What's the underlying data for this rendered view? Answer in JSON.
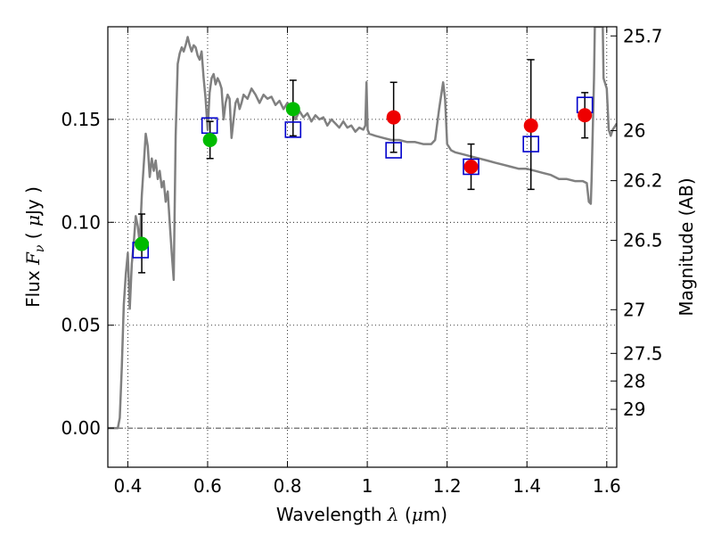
{
  "chart_data": {
    "type": "scatter",
    "xlabel": "Wavelength λ (μm)",
    "ylabel": "Flux F_ν (μJy)",
    "ylabel_right": "Magnitude (AB)",
    "xlim": [
      0.35,
      1.625
    ],
    "ylim": [
      -0.019,
      0.195
    ],
    "grid": true,
    "x_ticks": [
      {
        "value": 0.4,
        "label": "0.4"
      },
      {
        "value": 0.6,
        "label": "0.6"
      },
      {
        "value": 0.8,
        "label": "0.8"
      },
      {
        "value": 1.0,
        "label": "1"
      },
      {
        "value": 1.2,
        "label": "1.2"
      },
      {
        "value": 1.4,
        "label": "1.4"
      },
      {
        "value": 1.6,
        "label": "1.6"
      }
    ],
    "y_ticks": [
      {
        "value": 0.0,
        "label": "0.00"
      },
      {
        "value": 0.05,
        "label": "0.05"
      },
      {
        "value": 0.1,
        "label": "0.10"
      },
      {
        "value": 0.15,
        "label": "0.15"
      }
    ],
    "mag_ticks": [
      {
        "mag": 25.7,
        "label": "25.7"
      },
      {
        "mag": 26.0,
        "label": "26"
      },
      {
        "mag": 26.2,
        "label": "26.2"
      },
      {
        "mag": 26.5,
        "label": "26.5"
      },
      {
        "mag": 27.0,
        "label": "27"
      },
      {
        "mag": 27.5,
        "label": "27.5"
      },
      {
        "mag": 28.0,
        "label": "28"
      },
      {
        "mag": 29.0,
        "label": "29"
      }
    ],
    "colors": {
      "model": "#808080",
      "green": "#00bb00",
      "red": "#ee0000",
      "square": "#0000cc",
      "errorbar": "#000000"
    },
    "series": [
      {
        "marker": "circle",
        "color": "green",
        "points": [
          {
            "x": 0.435,
            "y": 0.0895
          },
          {
            "x": 0.606,
            "y": 0.14
          },
          {
            "x": 0.814,
            "y": 0.155
          }
        ]
      },
      {
        "marker": "circle",
        "color": "red",
        "points": [
          {
            "x": 1.066,
            "y": 0.151
          },
          {
            "x": 1.26,
            "y": 0.127
          },
          {
            "x": 1.41,
            "y": 0.147
          },
          {
            "x": 1.545,
            "y": 0.152
          }
        ]
      },
      {
        "marker": "open-square",
        "color": "square",
        "points": [
          {
            "x": 0.432,
            "y": 0.0865
          },
          {
            "x": 0.605,
            "y": 0.147
          },
          {
            "x": 0.814,
            "y": 0.145
          },
          {
            "x": 1.066,
            "y": 0.135
          },
          {
            "x": 1.26,
            "y": 0.127
          },
          {
            "x": 1.41,
            "y": 0.138
          },
          {
            "x": 1.545,
            "y": 0.157
          }
        ]
      },
      {
        "marker": "errorbar",
        "color": "errorbar",
        "points": [
          {
            "x": 0.435,
            "y": 0.0895,
            "ylow": 0.0755,
            "yhigh": 0.104
          },
          {
            "x": 0.606,
            "y": 0.14,
            "ylow": 0.131,
            "yhigh": 0.149
          },
          {
            "x": 0.814,
            "y": 0.155,
            "ylow": 0.142,
            "yhigh": 0.169
          },
          {
            "x": 1.066,
            "y": 0.151,
            "ylow": 0.134,
            "yhigh": 0.168
          },
          {
            "x": 1.26,
            "y": 0.127,
            "ylow": 0.116,
            "yhigh": 0.138
          },
          {
            "x": 1.41,
            "y": 0.147,
            "ylow": 0.116,
            "yhigh": 0.179
          },
          {
            "x": 1.545,
            "y": 0.152,
            "ylow": 0.141,
            "yhigh": 0.163
          }
        ]
      },
      {
        "marker": "line",
        "color": "model",
        "points": [
          [
            0.35,
            0.0
          ],
          [
            0.375,
            0.0
          ],
          [
            0.38,
            0.005
          ],
          [
            0.385,
            0.03
          ],
          [
            0.39,
            0.06
          ],
          [
            0.395,
            0.075
          ],
          [
            0.4,
            0.085
          ],
          [
            0.405,
            0.058
          ],
          [
            0.41,
            0.08
          ],
          [
            0.415,
            0.09
          ],
          [
            0.42,
            0.103
          ],
          [
            0.425,
            0.098
          ],
          [
            0.43,
            0.09
          ],
          [
            0.435,
            0.113
          ],
          [
            0.44,
            0.128
          ],
          [
            0.445,
            0.143
          ],
          [
            0.45,
            0.137
          ],
          [
            0.455,
            0.122
          ],
          [
            0.46,
            0.131
          ],
          [
            0.465,
            0.125
          ],
          [
            0.47,
            0.13
          ],
          [
            0.475,
            0.121
          ],
          [
            0.48,
            0.125
          ],
          [
            0.485,
            0.117
          ],
          [
            0.49,
            0.12
          ],
          [
            0.495,
            0.11
          ],
          [
            0.5,
            0.115
          ],
          [
            0.505,
            0.1
          ],
          [
            0.51,
            0.085
          ],
          [
            0.515,
            0.072
          ],
          [
            0.52,
            0.142
          ],
          [
            0.525,
            0.177
          ],
          [
            0.53,
            0.182
          ],
          [
            0.535,
            0.185
          ],
          [
            0.54,
            0.183
          ],
          [
            0.545,
            0.186
          ],
          [
            0.55,
            0.19
          ],
          [
            0.555,
            0.186
          ],
          [
            0.56,
            0.183
          ],
          [
            0.565,
            0.186
          ],
          [
            0.57,
            0.185
          ],
          [
            0.575,
            0.181
          ],
          [
            0.58,
            0.179
          ],
          [
            0.585,
            0.183
          ],
          [
            0.59,
            0.17
          ],
          [
            0.595,
            0.16
          ],
          [
            0.6,
            0.145
          ],
          [
            0.605,
            0.163
          ],
          [
            0.61,
            0.17
          ],
          [
            0.615,
            0.172
          ],
          [
            0.62,
            0.167
          ],
          [
            0.625,
            0.17
          ],
          [
            0.63,
            0.168
          ],
          [
            0.635,
            0.165
          ],
          [
            0.64,
            0.15
          ],
          [
            0.645,
            0.158
          ],
          [
            0.65,
            0.162
          ],
          [
            0.655,
            0.16
          ],
          [
            0.66,
            0.141
          ],
          [
            0.665,
            0.15
          ],
          [
            0.67,
            0.158
          ],
          [
            0.675,
            0.16
          ],
          [
            0.68,
            0.155
          ],
          [
            0.685,
            0.158
          ],
          [
            0.69,
            0.162
          ],
          [
            0.7,
            0.16
          ],
          [
            0.71,
            0.165
          ],
          [
            0.72,
            0.162
          ],
          [
            0.73,
            0.158
          ],
          [
            0.74,
            0.162
          ],
          [
            0.75,
            0.16
          ],
          [
            0.76,
            0.161
          ],
          [
            0.77,
            0.157
          ],
          [
            0.78,
            0.159
          ],
          [
            0.79,
            0.155
          ],
          [
            0.8,
            0.158
          ],
          [
            0.81,
            0.156
          ],
          [
            0.82,
            0.15
          ],
          [
            0.83,
            0.154
          ],
          [
            0.84,
            0.151
          ],
          [
            0.85,
            0.153
          ],
          [
            0.86,
            0.149
          ],
          [
            0.87,
            0.152
          ],
          [
            0.88,
            0.15
          ],
          [
            0.89,
            0.151
          ],
          [
            0.9,
            0.147
          ],
          [
            0.91,
            0.15
          ],
          [
            0.92,
            0.148
          ],
          [
            0.93,
            0.146
          ],
          [
            0.94,
            0.149
          ],
          [
            0.95,
            0.146
          ],
          [
            0.96,
            0.147
          ],
          [
            0.97,
            0.144
          ],
          [
            0.98,
            0.146
          ],
          [
            0.99,
            0.145
          ],
          [
            0.995,
            0.147
          ],
          [
            0.998,
            0.168
          ],
          [
            1.001,
            0.145
          ],
          [
            1.005,
            0.143
          ],
          [
            1.02,
            0.142
          ],
          [
            1.04,
            0.141
          ],
          [
            1.06,
            0.14
          ],
          [
            1.08,
            0.14
          ],
          [
            1.1,
            0.139
          ],
          [
            1.12,
            0.139
          ],
          [
            1.14,
            0.138
          ],
          [
            1.16,
            0.138
          ],
          [
            1.17,
            0.14
          ],
          [
            1.18,
            0.155
          ],
          [
            1.19,
            0.168
          ],
          [
            1.195,
            0.16
          ],
          [
            1.2,
            0.138
          ],
          [
            1.21,
            0.135
          ],
          [
            1.22,
            0.134
          ],
          [
            1.24,
            0.133
          ],
          [
            1.26,
            0.132
          ],
          [
            1.28,
            0.131
          ],
          [
            1.3,
            0.13
          ],
          [
            1.32,
            0.129
          ],
          [
            1.34,
            0.128
          ],
          [
            1.36,
            0.127
          ],
          [
            1.38,
            0.126
          ],
          [
            1.4,
            0.126
          ],
          [
            1.42,
            0.125
          ],
          [
            1.44,
            0.124
          ],
          [
            1.46,
            0.123
          ],
          [
            1.48,
            0.121
          ],
          [
            1.5,
            0.121
          ],
          [
            1.52,
            0.12
          ],
          [
            1.54,
            0.12
          ],
          [
            1.55,
            0.119
          ],
          [
            1.555,
            0.11
          ],
          [
            1.56,
            0.109
          ],
          [
            1.562,
            0.121
          ],
          [
            1.565,
            0.145
          ],
          [
            1.568,
            0.17
          ],
          [
            1.57,
            0.195
          ],
          [
            1.585,
            0.195
          ],
          [
            1.59,
            0.196
          ],
          [
            1.592,
            0.17
          ],
          [
            1.6,
            0.165
          ],
          [
            1.605,
            0.145
          ],
          [
            1.61,
            0.142
          ],
          [
            1.615,
            0.145
          ],
          [
            1.625,
            0.148
          ]
        ]
      }
    ]
  }
}
